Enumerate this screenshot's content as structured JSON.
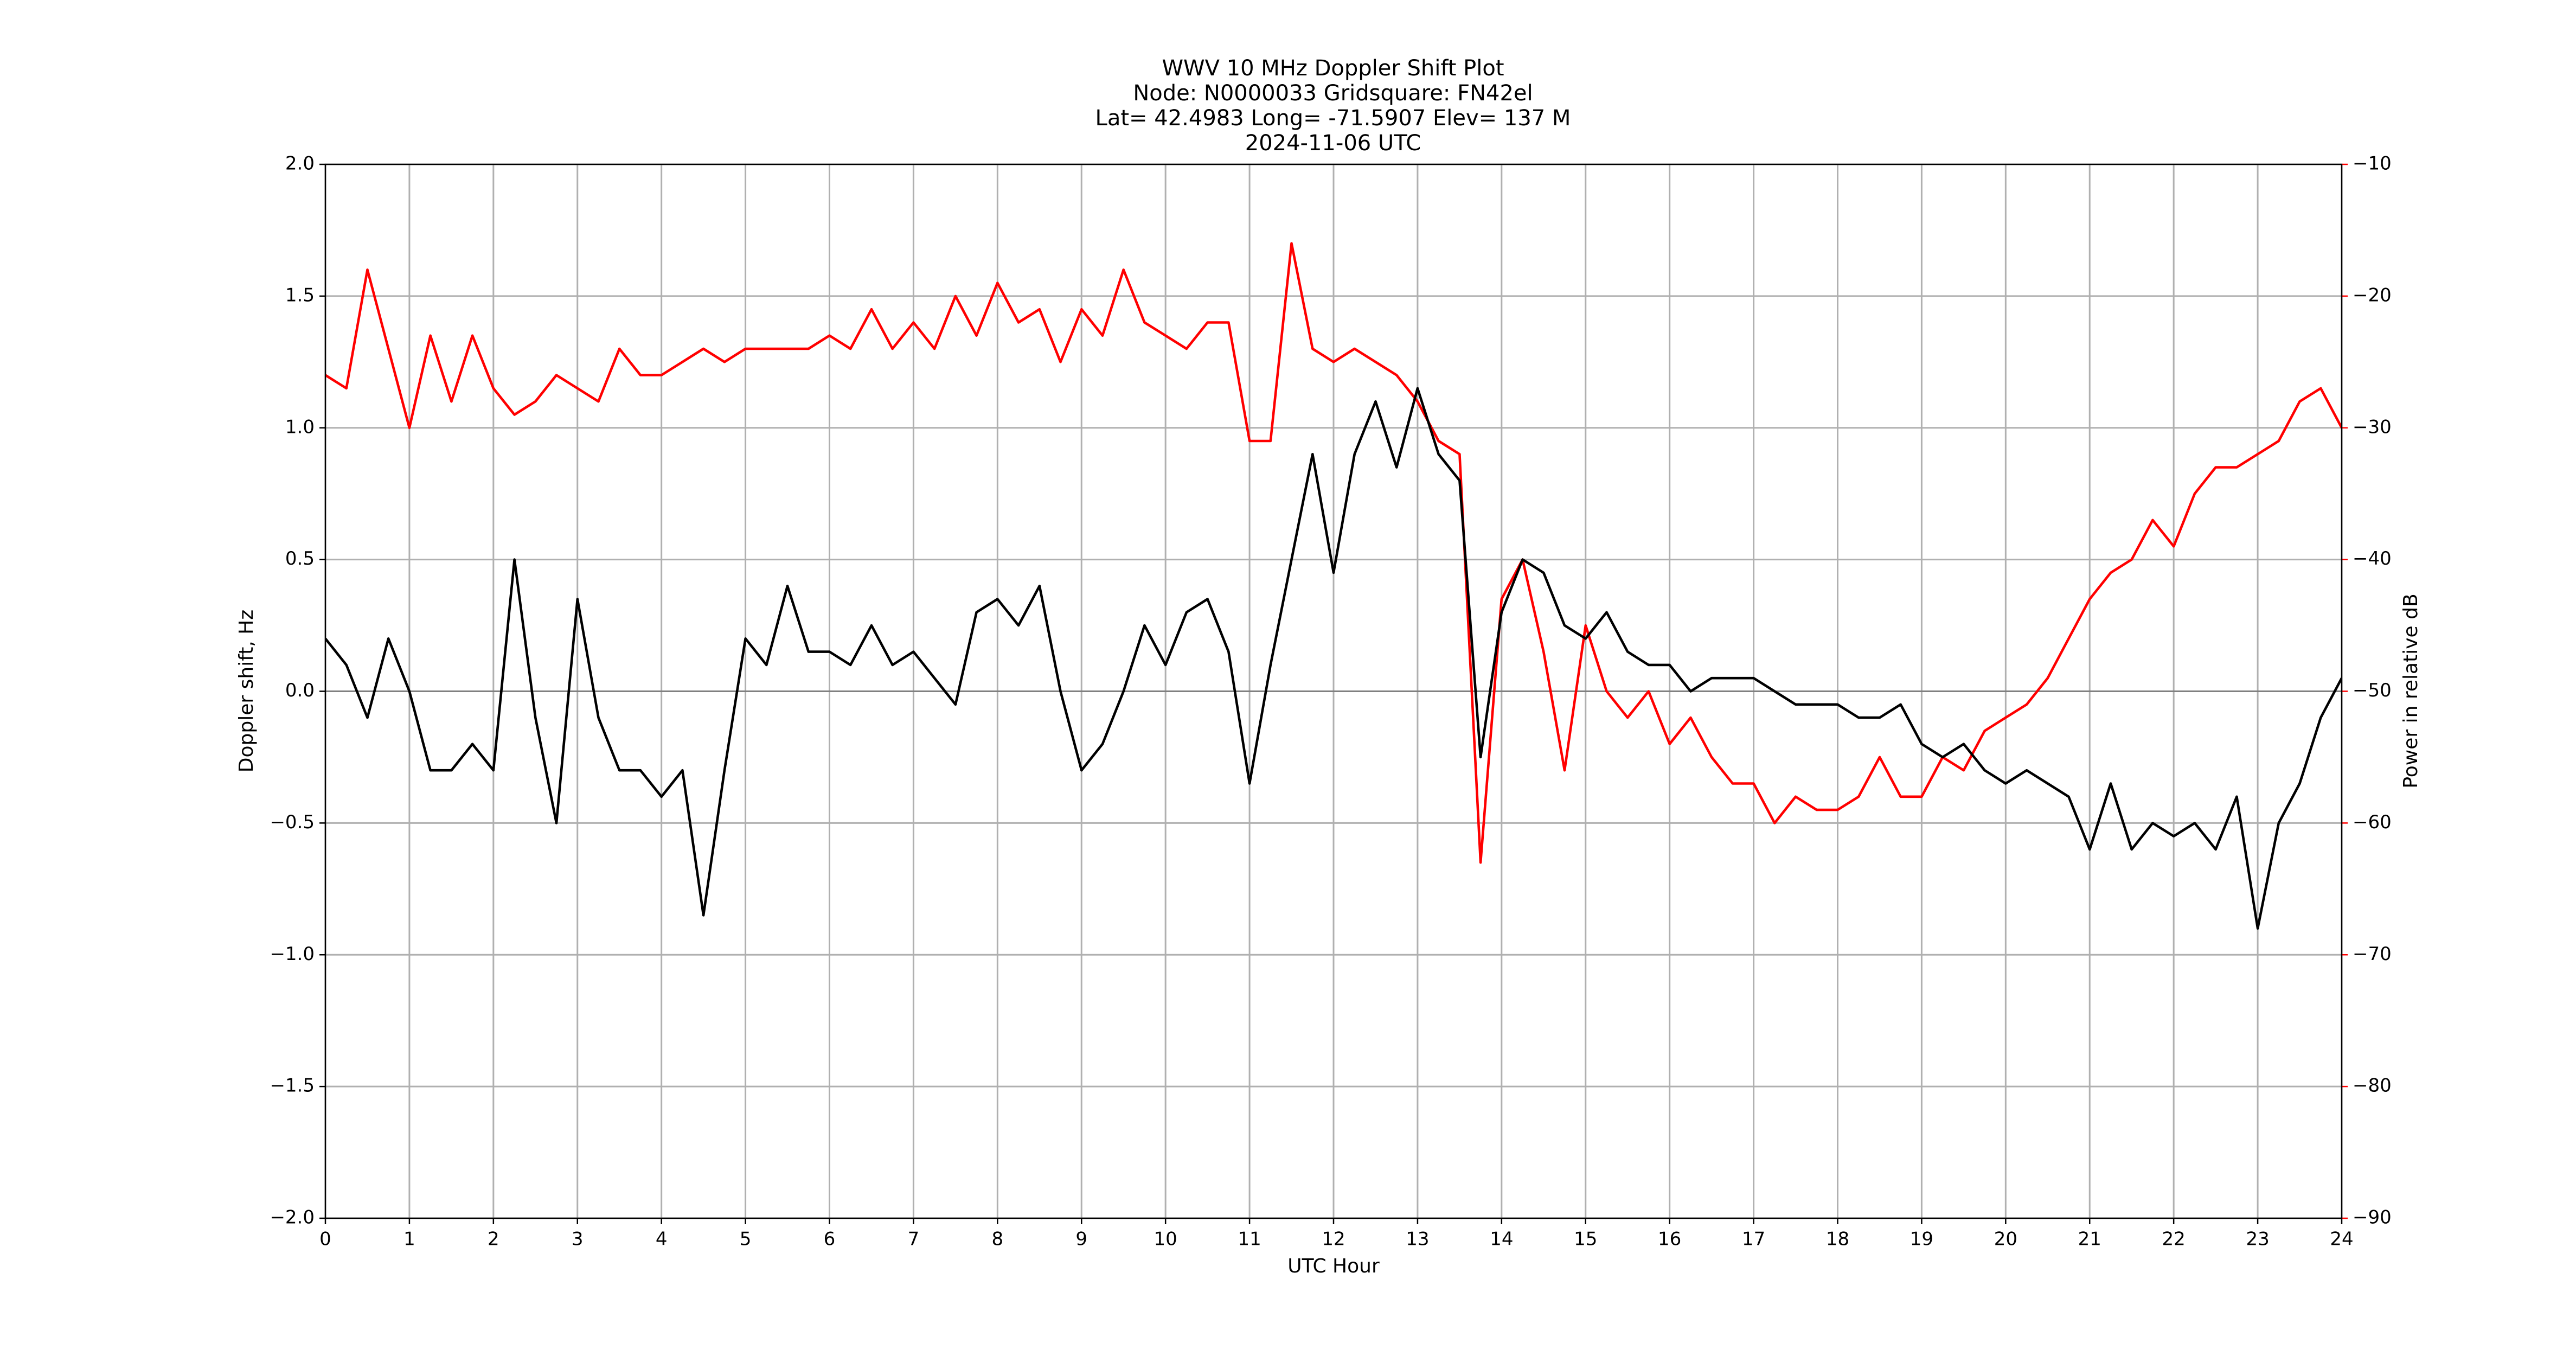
{
  "chart_data": {
    "type": "line",
    "title": [
      "WWV 10 MHz Doppler Shift Plot",
      "Node:  N0000033     Gridsquare:  FN42el",
      "Lat= 42.4983    Long= -71.5907    Elev= 137 M",
      "2024-11-06  UTC"
    ],
    "x_label": "UTC Hour",
    "y_label": "Doppler shift, Hz",
    "y2_label": "Power in relative dB",
    "x": [
      0,
      0.25,
      0.5,
      0.75,
      1,
      1.25,
      1.5,
      1.75,
      2,
      2.25,
      2.5,
      2.75,
      3,
      3.25,
      3.5,
      3.75,
      4,
      4.25,
      4.5,
      4.75,
      5,
      5.25,
      5.5,
      5.75,
      6,
      6.25,
      6.5,
      6.75,
      7,
      7.25,
      7.5,
      7.75,
      8,
      8.25,
      8.5,
      8.75,
      9,
      9.25,
      9.5,
      9.75,
      10,
      10.25,
      10.5,
      10.75,
      11,
      11.25,
      11.5,
      11.75,
      12,
      12.25,
      12.5,
      12.75,
      13,
      13.25,
      13.5,
      13.75,
      14,
      14.25,
      14.5,
      14.75,
      15,
      15.25,
      15.5,
      15.75,
      16,
      16.25,
      16.5,
      16.75,
      17,
      17.25,
      17.5,
      17.75,
      18,
      18.25,
      18.5,
      18.75,
      19,
      19.25,
      19.5,
      19.75,
      20,
      20.25,
      20.5,
      20.75,
      21,
      21.25,
      21.5,
      21.75,
      22,
      22.25,
      22.5,
      22.75,
      23,
      23.25,
      23.5,
      23.75,
      24
    ],
    "series": [
      {
        "name": "Doppler shift",
        "color": "#000000",
        "values": [
          0.2,
          0.1,
          -0.1,
          0.2,
          0.0,
          -0.3,
          -0.3,
          -0.2,
          -0.3,
          0.5,
          -0.1,
          -0.5,
          0.35,
          -0.1,
          -0.3,
          -0.3,
          -0.4,
          -0.3,
          -0.85,
          -0.3,
          0.2,
          0.1,
          0.4,
          0.15,
          0.15,
          0.1,
          0.25,
          0.1,
          0.15,
          0.05,
          -0.05,
          0.3,
          0.35,
          0.25,
          0.4,
          0.0,
          -0.3,
          -0.2,
          0.0,
          0.25,
          0.1,
          0.3,
          0.35,
          0.15,
          -0.35,
          0.1,
          0.5,
          0.9,
          0.45,
          0.9,
          1.1,
          0.85,
          1.15,
          0.9,
          0.8,
          -0.25,
          0.3,
          0.5,
          0.45,
          0.25,
          0.2,
          0.3,
          0.15,
          0.1,
          0.1,
          0.0,
          0.05,
          0.05,
          0.05,
          0.0,
          -0.05,
          -0.05,
          -0.05,
          -0.1,
          -0.1,
          -0.05,
          -0.2,
          -0.25,
          -0.2,
          -0.3,
          -0.35,
          -0.3,
          -0.35,
          -0.4,
          -0.6,
          -0.35,
          -0.6,
          -0.5,
          -0.55,
          -0.5,
          -0.6,
          -0.4,
          -0.9,
          -0.5,
          -0.35,
          -0.1,
          0.05
        ]
      },
      {
        "name": "Power",
        "color": "#ff0000",
        "axis": "y2",
        "values": [
          -26,
          -27,
          -18,
          -24,
          -30,
          -23,
          -28,
          -23,
          -27,
          -29,
          -28,
          -26,
          -27,
          -28,
          -24,
          -26,
          -26,
          -25,
          -24,
          -25,
          -24,
          -24,
          -24,
          -24,
          -23,
          -24,
          -21,
          -24,
          -22,
          -24,
          -20,
          -23,
          -19,
          -22,
          -21,
          -25,
          -21,
          -23,
          -18,
          -22,
          -23,
          -24,
          -22,
          -22,
          -31,
          -31,
          -16,
          -24,
          -25,
          -24,
          -25,
          -26,
          -28,
          -31,
          -32,
          -63,
          -43,
          -40,
          -47,
          -56,
          -45,
          -50,
          -52,
          -50,
          -54,
          -52,
          -55,
          -57,
          -57,
          -60,
          -58,
          -59,
          -59,
          -58,
          -55,
          -58,
          -58,
          -55,
          -56,
          -53,
          -52,
          -51,
          -49,
          -46,
          -43,
          -41,
          -40,
          -37,
          -39,
          -35,
          -33,
          -33,
          -32,
          -31,
          -28,
          -27,
          -30
        ]
      }
    ],
    "xlim": [
      0,
      24
    ],
    "xticks": [
      0,
      1,
      2,
      3,
      4,
      5,
      6,
      7,
      8,
      9,
      10,
      11,
      12,
      13,
      14,
      15,
      16,
      17,
      18,
      19,
      20,
      21,
      22,
      23,
      24
    ],
    "ylim": [
      -2,
      2
    ],
    "yticks": [
      {
        "value": -2,
        "label": "−2.0"
      },
      {
        "value": -1.5,
        "label": "−1.5"
      },
      {
        "value": -1,
        "label": "−1.0"
      },
      {
        "value": -0.5,
        "label": "−0.5"
      },
      {
        "value": 0,
        "label": "0.0"
      },
      {
        "value": 0.5,
        "label": "0.5"
      },
      {
        "value": 1,
        "label": "1.0"
      },
      {
        "value": 1.5,
        "label": "1.5"
      },
      {
        "value": 2,
        "label": "2.0"
      }
    ],
    "y2lim": [
      -90,
      -10
    ],
    "y2ticks": [
      {
        "value": -90,
        "label": "−90"
      },
      {
        "value": -80,
        "label": "−80"
      },
      {
        "value": -70,
        "label": "−70"
      },
      {
        "value": -60,
        "label": "−60"
      },
      {
        "value": -50,
        "label": "−50"
      },
      {
        "value": -40,
        "label": "−40"
      },
      {
        "value": -30,
        "label": "−30"
      },
      {
        "value": -20,
        "label": "−20"
      },
      {
        "value": -10,
        "label": "−10"
      }
    ],
    "hline": 0,
    "grid": true
  }
}
